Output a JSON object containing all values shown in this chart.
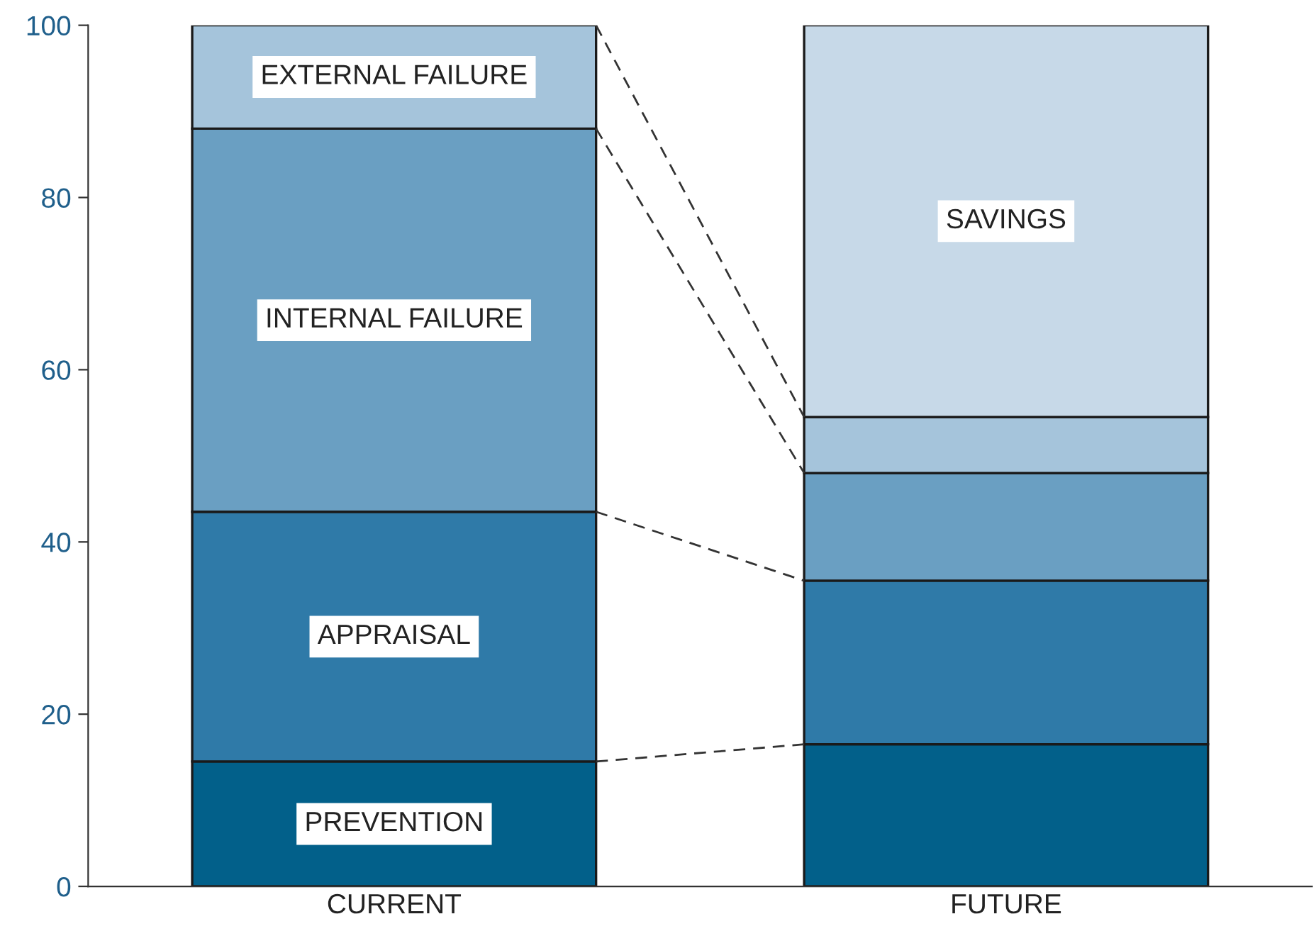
{
  "chart_data": {
    "type": "bar",
    "stacked": true,
    "categories": [
      "CURRENT",
      "FUTURE"
    ],
    "series": [
      {
        "name": "PREVENTION",
        "color": "#02608a",
        "values": [
          14.5,
          16.5
        ]
      },
      {
        "name": "APPRAISAL",
        "color": "#2f7aa8",
        "values": [
          29,
          19
        ]
      },
      {
        "name": "INTERNAL FAILURE",
        "color": "#6a9fc2",
        "values": [
          44.5,
          12.5
        ]
      },
      {
        "name": "EXTERNAL FAILURE",
        "color": "#a5c4db",
        "values": [
          12,
          6.5
        ]
      },
      {
        "name": "SAVINGS",
        "color": "#c7d9e8",
        "values": [
          null,
          45.5
        ]
      }
    ],
    "ylim": [
      0,
      100
    ],
    "yticks": [
      0,
      20,
      40,
      60,
      80,
      100
    ],
    "grid": false,
    "legend": false
  }
}
